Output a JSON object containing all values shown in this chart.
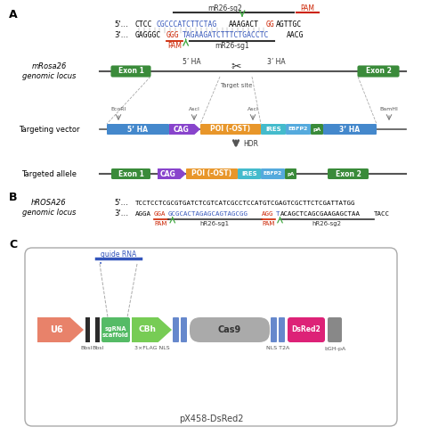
{
  "panel_A_label": "A",
  "panel_B_label": "B",
  "panel_C_label": "C",
  "mR26_sg2_label": "mR26-sg2",
  "mR26_sg1_label": "mR26-sg1",
  "PAM_label": "PAM",
  "mRosa26_label": "mRosa26\ngenomic locus",
  "exon1_label": "Exon 1",
  "exon2_label": "Exon 2",
  "ha5_label": "5’ HA",
  "ha3_label": "3’ HA",
  "target_site_label": "Target site",
  "targeting_vector_label": "Targeting vector",
  "EcoRI_label": "EcoRI",
  "AscI_label1": "AscI",
  "AscI_label2": "AscI",
  "BamHI_label": "BamHI",
  "vec_5HA_label": "5’ HA",
  "vec_CAG_label": "CAG",
  "vec_POI_label": "POI (-OST)",
  "vec_IRES_label": "IRES",
  "vec_EBFP2_label": "EBFP2",
  "vec_pA_label": "pA",
  "vec_3HA_label": "3’ HA",
  "HDR_label": "HDR",
  "targeted_allele_label": "Targeted allele",
  "ta_exon1_label": "Exon 1",
  "ta_CAG_label": "CAG",
  "ta_POI_label": "POI (-OST)",
  "ta_IRES_label": "IRES",
  "ta_EBFP2_label": "EBFP2",
  "ta_pA_label": "pA",
  "ta_exon2_label": "Exon 2",
  "hROSA26_label": "hROSA26\ngenomic locus",
  "hseq_top": "TCCTCCTCGCGTGATCTCGTCATCGCCTCCATGTCGAGTCGCTTCTCGATTATGG",
  "hR26_sg1_label": "hR26-sg1",
  "hR26_sg2_label": "hR26-sg2",
  "hPAM1_label": "PAM",
  "hPAM2_label": "PAM",
  "guide_RNA_label": "guide RNA",
  "U6_label": "U6",
  "BbsI_label1": "BbsI",
  "BbsI_label2": "BbsI",
  "sgRNA_label": "sgRNA\nscaffold",
  "CBh_label": "CBh",
  "FLAG_label": "3×FLAG NLS",
  "Cas9_label": "Cas9",
  "NLS_label": "NLS T2A",
  "DsRed2_label": "DsRed2",
  "bGH_label": "bGH-pA",
  "px458_label": "pX458-DsRed2",
  "color_blue": "#3355BB",
  "color_red": "#CC2200",
  "color_green_exon": "#3A8B3A",
  "color_purple": "#8844CC",
  "color_orange": "#E8962A",
  "color_cyan": "#44BBCC",
  "color_light_blue": "#4488CC",
  "color_green_arrow": "#44AA44",
  "color_salmon": "#E8826A",
  "color_pink": "#DD2277",
  "color_gray": "#AAAAAA",
  "color_dark_gray": "#444444",
  "color_sgRNA_green": "#55BB66",
  "color_CBh_green": "#77CC55",
  "color_linker_blue": "#6688CC",
  "bg_color": "#FFFFFF"
}
